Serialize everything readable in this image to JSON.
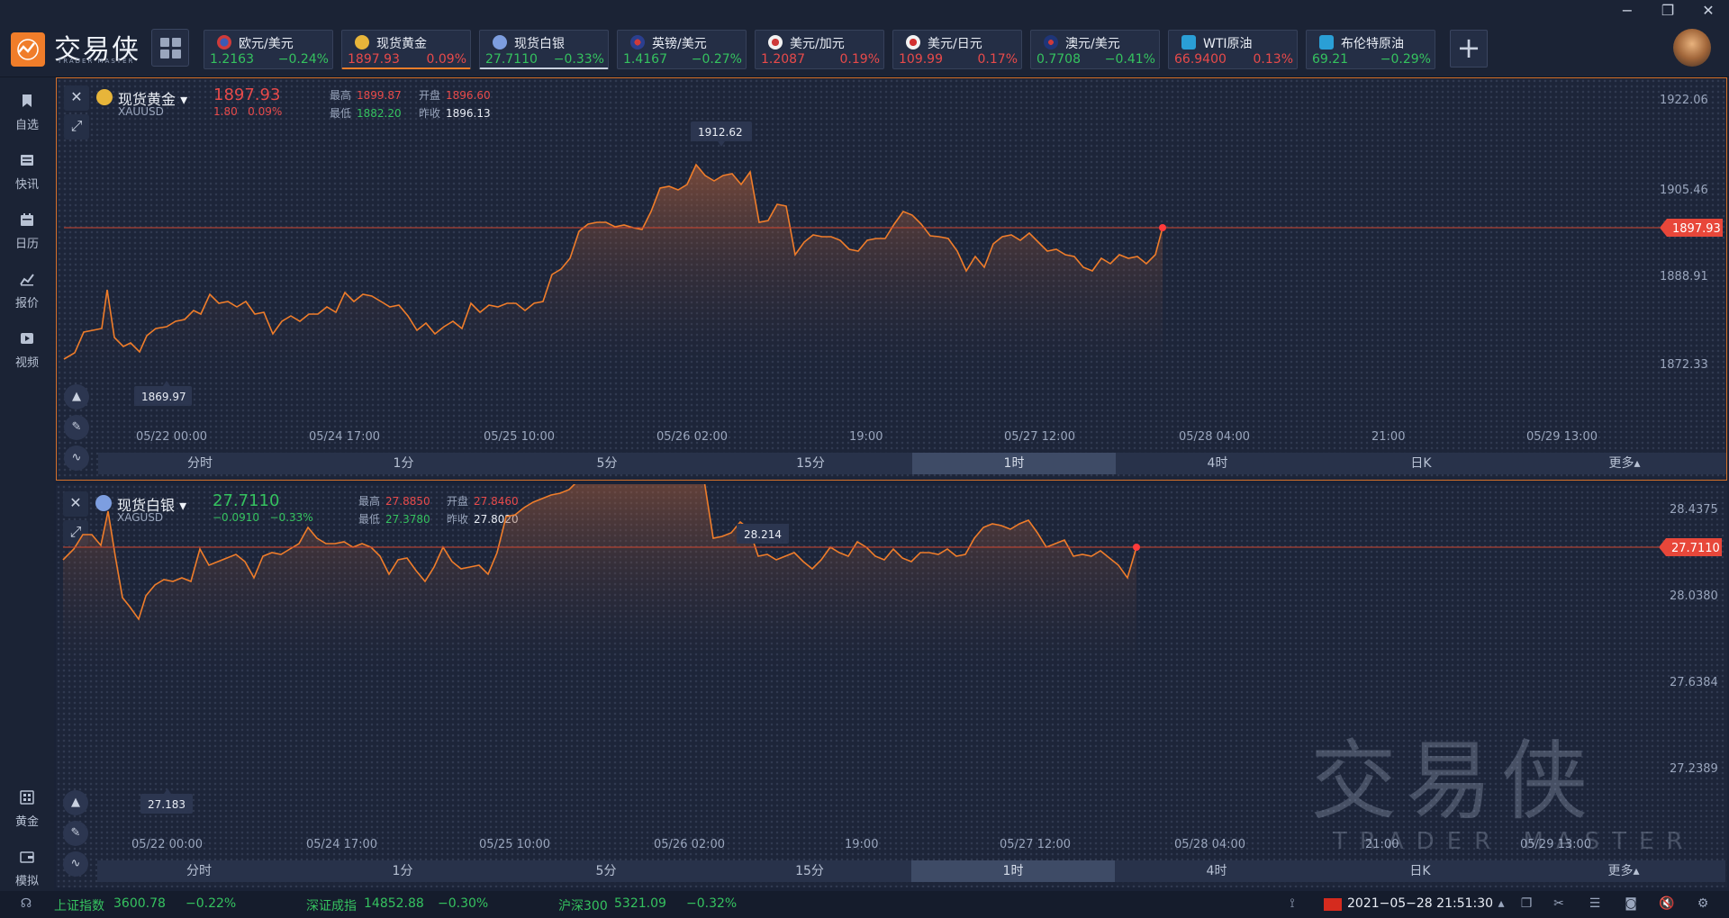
{
  "app": {
    "brand": "交易侠",
    "brand_sub": "TRADER MASTER"
  },
  "tickers": [
    {
      "name": "欧元/美元",
      "price": "1.2163",
      "change": "−0.24%",
      "dir": "down"
    },
    {
      "name": "现货黄金",
      "price": "1897.93",
      "change": "0.09%",
      "dir": "up"
    },
    {
      "name": "现货白银",
      "price": "27.7110",
      "change": "−0.33%",
      "dir": "down"
    },
    {
      "name": "英镑/美元",
      "price": "1.4167",
      "change": "−0.27%",
      "dir": "down"
    },
    {
      "name": "美元/加元",
      "price": "1.2087",
      "change": "0.19%",
      "dir": "up"
    },
    {
      "name": "美元/日元",
      "price": "109.99",
      "change": "0.17%",
      "dir": "up"
    },
    {
      "name": "澳元/美元",
      "price": "0.7708",
      "change": "−0.41%",
      "dir": "down"
    },
    {
      "name": "WTI原油",
      "price": "66.9400",
      "change": "0.13%",
      "dir": "up"
    },
    {
      "name": "布伦特原油",
      "price": "69.21",
      "change": "−0.29%",
      "dir": "down"
    }
  ],
  "sidebar": {
    "items": [
      {
        "label": "自选",
        "icon": "bookmark-icon"
      },
      {
        "label": "快讯",
        "icon": "news-icon"
      },
      {
        "label": "日历",
        "icon": "calendar-icon"
      },
      {
        "label": "报价",
        "icon": "quote-chart-icon"
      },
      {
        "label": "视频",
        "icon": "video-icon"
      }
    ],
    "bottom_items": [
      {
        "label": "黄金",
        "icon": "gold-icon"
      },
      {
        "label": "模拟",
        "icon": "wallet-icon"
      }
    ]
  },
  "timeframes": [
    "分时",
    "1分",
    "5分",
    "15分",
    "1时",
    "4时",
    "日K",
    "更多▴"
  ],
  "gold": {
    "name": "现货黄金",
    "symbol": "XAUUSD",
    "price": "1897.93",
    "change_abs": "1.80",
    "change_pct": "0.09%",
    "high_label": "最高",
    "high": "1899.87",
    "low_label": "最低",
    "low": "1882.20",
    "open_label": "开盘",
    "open": "1896.60",
    "prev_label": "昨收",
    "prev": "1896.13",
    "current_tag": "1897.93",
    "peak_tag": "1912.62",
    "trough_tag": "1869.97",
    "y_ticks": [
      "1922.06",
      "1905.46",
      "1888.91",
      "1872.33"
    ],
    "x_ticks": [
      "05/22 00:00",
      "05/24 17:00",
      "05/25 10:00",
      "05/26 02:00",
      "19:00",
      "05/27 12:00",
      "05/28 04:00",
      "21:00",
      "05/29 13:00"
    ]
  },
  "silver": {
    "name": "现货白银",
    "symbol": "XAGUSD",
    "price": "27.7110",
    "change_abs": "−0.0910",
    "change_pct": "−0.33%",
    "high_label": "最高",
    "high": "27.8850",
    "low_label": "最低",
    "low": "27.3780",
    "open_label": "开盘",
    "open": "27.8460",
    "prev_label": "昨收",
    "prev": "27.8020",
    "current_tag": "27.7110",
    "peak_tag": "28.214",
    "trough_tag": "27.183",
    "y_ticks": [
      "28.4375",
      "28.0380",
      "27.6384",
      "27.2389"
    ],
    "x_ticks": [
      "05/22 00:00",
      "05/24 17:00",
      "05/25 10:00",
      "05/26 02:00",
      "19:00",
      "05/27 12:00",
      "05/28 04:00",
      "21:00",
      "05/29 13:00"
    ]
  },
  "statusbar": {
    "indices": [
      {
        "name": "上证指数",
        "value": "3600.78",
        "change": "−0.22%"
      },
      {
        "name": "深证成指",
        "value": "14852.88",
        "change": "−0.30%"
      },
      {
        "name": "沪深300",
        "value": "5321.09",
        "change": "−0.32%"
      }
    ],
    "datetime": "2021−05−28 21:51:30"
  },
  "watermark": {
    "text": "交易侠",
    "sub": "TRADER MASTER"
  },
  "colors": {
    "up": "#e84a4a",
    "down": "#35c25f",
    "accent": "#f07d2a"
  }
}
